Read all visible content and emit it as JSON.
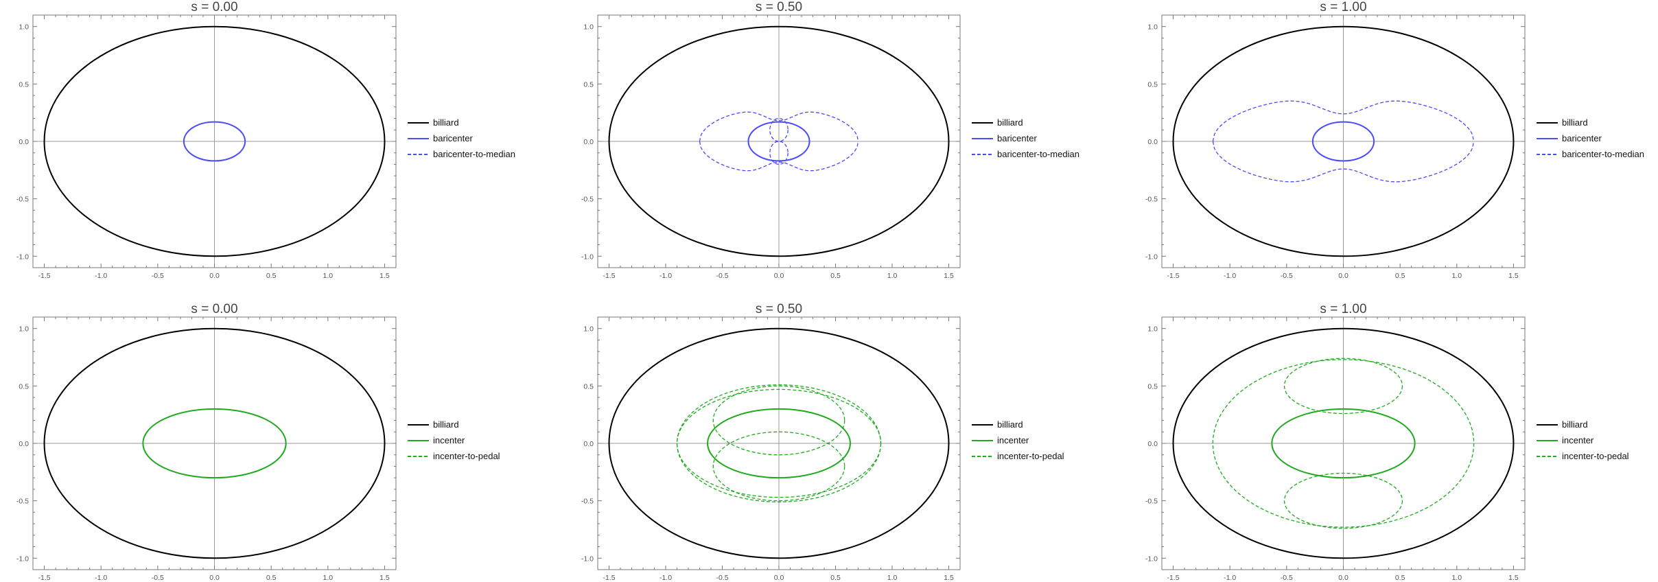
{
  "colors": {
    "billiard": "#000000",
    "blue": "#4a4aff",
    "green": "#1faa1f",
    "axis": "#9a9a9a",
    "frame": "#777777"
  },
  "chart_data": [
    {
      "type": "line",
      "title": "s = 0.00",
      "xlim": [
        -1.6,
        1.6
      ],
      "ylim": [
        -1.1,
        1.1
      ],
      "xticks": [
        "-1.5",
        "-1.0",
        "-0.5",
        "0.0",
        "0.5",
        "1.0",
        "1.5"
      ],
      "yticks": [
        "-1.0",
        "-0.5",
        "0.0",
        "0.5",
        "1.0"
      ],
      "grid": false,
      "legend": "right",
      "series": [
        {
          "name": "billiard",
          "style": "solid",
          "color": "billiard",
          "curve": "ellipse",
          "cx": 0,
          "cy": 0,
          "a": 1.5,
          "b": 1.0
        },
        {
          "name": "baricenter",
          "style": "solid",
          "color": "blue",
          "curve": "ellipse",
          "cx": 0,
          "cy": 0,
          "a": 0.27,
          "b": 0.17
        },
        {
          "name": "baricenter-to-median",
          "style": "dashed",
          "color": "blue",
          "curve": "none"
        }
      ]
    },
    {
      "type": "line",
      "title": "s = 0.50",
      "xlim": [
        -1.6,
        1.6
      ],
      "ylim": [
        -1.1,
        1.1
      ],
      "xticks": [
        "-1.5",
        "-1.0",
        "-0.5",
        "0.0",
        "0.5",
        "1.0",
        "1.5"
      ],
      "yticks": [
        "-1.0",
        "-0.5",
        "0.0",
        "0.5",
        "1.0"
      ],
      "grid": false,
      "legend": "right",
      "series": [
        {
          "name": "billiard",
          "style": "solid",
          "color": "billiard",
          "curve": "ellipse",
          "cx": 0,
          "cy": 0,
          "a": 1.5,
          "b": 1.0
        },
        {
          "name": "baricenter",
          "style": "solid",
          "color": "blue",
          "curve": "ellipse",
          "cx": 0,
          "cy": 0,
          "a": 0.27,
          "b": 0.17
        },
        {
          "name": "baricenter-to-median",
          "style": "dashed",
          "color": "blue",
          "curve": "lobes",
          "w": 0.7,
          "h": 0.29,
          "neck": 0.18,
          "inner": 0.08
        }
      ]
    },
    {
      "type": "line",
      "title": "s = 1.00",
      "xlim": [
        -1.6,
        1.6
      ],
      "ylim": [
        -1.1,
        1.1
      ],
      "xticks": [
        "-1.5",
        "-1.0",
        "-0.5",
        "0.0",
        "0.5",
        "1.0",
        "1.5"
      ],
      "yticks": [
        "-1.0",
        "-0.5",
        "0.0",
        "0.5",
        "1.0"
      ],
      "grid": false,
      "legend": "right",
      "series": [
        {
          "name": "billiard",
          "style": "solid",
          "color": "billiard",
          "curve": "ellipse",
          "cx": 0,
          "cy": 0,
          "a": 1.5,
          "b": 1.0
        },
        {
          "name": "baricenter",
          "style": "solid",
          "color": "blue",
          "curve": "ellipse",
          "cx": 0,
          "cy": 0,
          "a": 0.27,
          "b": 0.17
        },
        {
          "name": "baricenter-to-median",
          "style": "dashed",
          "color": "blue",
          "curve": "lobes",
          "w": 1.15,
          "h": 0.4,
          "neck": 0.24,
          "inner": 0
        }
      ]
    },
    {
      "type": "line",
      "title": "s = 0.00",
      "xlim": [
        -1.6,
        1.6
      ],
      "ylim": [
        -1.1,
        1.1
      ],
      "xticks": [
        "-1.5",
        "-1.0",
        "-0.5",
        "0.0",
        "0.5",
        "1.0",
        "1.5"
      ],
      "yticks": [
        "-1.0",
        "-0.5",
        "0.0",
        "0.5",
        "1.0"
      ],
      "grid": false,
      "legend": "right",
      "series": [
        {
          "name": "billiard",
          "style": "solid",
          "color": "billiard",
          "curve": "ellipse",
          "cx": 0,
          "cy": 0,
          "a": 1.5,
          "b": 1.0
        },
        {
          "name": "incenter",
          "style": "solid",
          "color": "green",
          "curve": "ellipse",
          "cx": 0,
          "cy": 0,
          "a": 0.63,
          "b": 0.3
        },
        {
          "name": "incenter-to-pedal",
          "style": "dashed",
          "color": "green",
          "curve": "none"
        }
      ]
    },
    {
      "type": "line",
      "title": "s = 0.50",
      "xlim": [
        -1.6,
        1.6
      ],
      "ylim": [
        -1.1,
        1.1
      ],
      "xticks": [
        "-1.5",
        "-1.0",
        "-0.5",
        "0.0",
        "0.5",
        "1.0",
        "1.5"
      ],
      "yticks": [
        "-1.0",
        "-0.5",
        "0.0",
        "0.5",
        "1.0"
      ],
      "grid": false,
      "legend": "right",
      "series": [
        {
          "name": "billiard",
          "style": "solid",
          "color": "billiard",
          "curve": "ellipse",
          "cx": 0,
          "cy": 0,
          "a": 1.5,
          "b": 1.0
        },
        {
          "name": "incenter",
          "style": "solid",
          "color": "green",
          "curve": "ellipse",
          "cx": 0,
          "cy": 0,
          "a": 0.63,
          "b": 0.3
        },
        {
          "name": "incenter-to-pedal",
          "style": "dashed",
          "color": "green",
          "curve": "ellipses",
          "items": [
            {
              "cx": 0,
              "cy": 0,
              "a": 0.9,
              "b": 0.51
            },
            {
              "cx": 0,
              "cy": 0,
              "a": 0.9,
              "b": 0.47
            },
            {
              "cx": 0,
              "cy": 0.2,
              "a": 0.58,
              "b": 0.3
            },
            {
              "cx": 0,
              "cy": -0.2,
              "a": 0.58,
              "b": 0.3
            }
          ]
        }
      ]
    },
    {
      "type": "line",
      "title": "s = 1.00",
      "xlim": [
        -1.6,
        1.6
      ],
      "ylim": [
        -1.1,
        1.1
      ],
      "xticks": [
        "-1.5",
        "-1.0",
        "-0.5",
        "0.0",
        "0.5",
        "1.0",
        "1.5"
      ],
      "yticks": [
        "-1.0",
        "-0.5",
        "0.0",
        "0.5",
        "1.0"
      ],
      "grid": false,
      "legend": "right",
      "series": [
        {
          "name": "billiard",
          "style": "solid",
          "color": "billiard",
          "curve": "ellipse",
          "cx": 0,
          "cy": 0,
          "a": 1.5,
          "b": 1.0
        },
        {
          "name": "incenter",
          "style": "solid",
          "color": "green",
          "curve": "ellipse",
          "cx": 0,
          "cy": 0,
          "a": 0.63,
          "b": 0.3
        },
        {
          "name": "incenter-to-pedal",
          "style": "dashed",
          "color": "green",
          "curve": "ellipses",
          "items": [
            {
              "cx": 0,
              "cy": 0,
              "a": 1.15,
              "b": 0.73
            },
            {
              "cx": 0,
              "cy": 0.5,
              "a": 0.52,
              "b": 0.24
            },
            {
              "cx": 0,
              "cy": -0.5,
              "a": 0.52,
              "b": 0.24
            }
          ]
        }
      ]
    }
  ]
}
